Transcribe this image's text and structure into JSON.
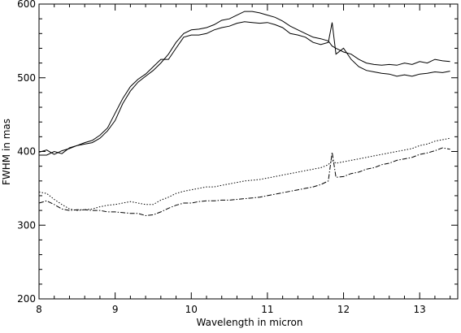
{
  "chart_data": {
    "type": "line",
    "title": "",
    "xlabel": "Wavelength in micron",
    "ylabel": "FWHM in mas",
    "xlim": [
      8,
      13.5
    ],
    "ylim": [
      200,
      600
    ],
    "xticks": [
      8,
      9,
      10,
      11,
      12,
      13
    ],
    "yticks": [
      200,
      300,
      400,
      500,
      600
    ],
    "grid": false,
    "legend": "none",
    "series": [
      {
        "style": "solid",
        "points": [
          [
            8.0,
            399
          ],
          [
            8.1,
            402
          ],
          [
            8.2,
            396
          ],
          [
            8.3,
            401
          ],
          [
            8.4,
            404
          ],
          [
            8.5,
            408
          ],
          [
            8.6,
            410
          ],
          [
            8.7,
            412
          ],
          [
            8.8,
            418
          ],
          [
            8.9,
            428
          ],
          [
            9.0,
            442
          ],
          [
            9.1,
            465
          ],
          [
            9.2,
            482
          ],
          [
            9.3,
            494
          ],
          [
            9.4,
            502
          ],
          [
            9.5,
            510
          ],
          [
            9.6,
            520
          ],
          [
            9.7,
            532
          ],
          [
            9.8,
            548
          ],
          [
            9.9,
            560
          ],
          [
            10.0,
            565
          ],
          [
            10.1,
            566
          ],
          [
            10.2,
            568
          ],
          [
            10.3,
            572
          ],
          [
            10.4,
            578
          ],
          [
            10.5,
            580
          ],
          [
            10.6,
            585
          ],
          [
            10.7,
            590
          ],
          [
            10.8,
            590
          ],
          [
            10.9,
            588
          ],
          [
            11.0,
            585
          ],
          [
            11.1,
            582
          ],
          [
            11.2,
            577
          ],
          [
            11.3,
            570
          ],
          [
            11.4,
            565
          ],
          [
            11.5,
            560
          ],
          [
            11.6,
            555
          ],
          [
            11.7,
            553
          ],
          [
            11.8,
            550
          ],
          [
            11.85,
            543
          ],
          [
            11.9,
            540
          ],
          [
            12.0,
            535
          ],
          [
            12.1,
            532
          ],
          [
            12.2,
            525
          ],
          [
            12.3,
            520
          ],
          [
            12.4,
            518
          ],
          [
            12.5,
            517
          ],
          [
            12.6,
            518
          ],
          [
            12.7,
            517
          ],
          [
            12.8,
            520
          ],
          [
            12.9,
            518
          ],
          [
            13.0,
            522
          ],
          [
            13.1,
            520
          ],
          [
            13.2,
            525
          ],
          [
            13.3,
            523
          ],
          [
            13.4,
            522
          ]
        ]
      },
      {
        "style": "solid",
        "points": [
          [
            8.0,
            395
          ],
          [
            8.1,
            395
          ],
          [
            8.2,
            400
          ],
          [
            8.3,
            397
          ],
          [
            8.4,
            405
          ],
          [
            8.5,
            408
          ],
          [
            8.6,
            412
          ],
          [
            8.7,
            415
          ],
          [
            8.8,
            422
          ],
          [
            8.9,
            432
          ],
          [
            9.0,
            452
          ],
          [
            9.1,
            472
          ],
          [
            9.2,
            488
          ],
          [
            9.3,
            498
          ],
          [
            9.4,
            505
          ],
          [
            9.5,
            515
          ],
          [
            9.6,
            525
          ],
          [
            9.7,
            525
          ],
          [
            9.8,
            540
          ],
          [
            9.9,
            555
          ],
          [
            10.0,
            558
          ],
          [
            10.1,
            558
          ],
          [
            10.2,
            560
          ],
          [
            10.3,
            565
          ],
          [
            10.4,
            568
          ],
          [
            10.5,
            570
          ],
          [
            10.6,
            574
          ],
          [
            10.7,
            576
          ],
          [
            10.8,
            575
          ],
          [
            10.9,
            574
          ],
          [
            11.0,
            575
          ],
          [
            11.1,
            572
          ],
          [
            11.2,
            568
          ],
          [
            11.3,
            560
          ],
          [
            11.4,
            558
          ],
          [
            11.5,
            555
          ],
          [
            11.6,
            548
          ],
          [
            11.7,
            545
          ],
          [
            11.8,
            548
          ],
          [
            11.85,
            575
          ],
          [
            11.9,
            532
          ],
          [
            12.0,
            540
          ],
          [
            12.1,
            525
          ],
          [
            12.2,
            515
          ],
          [
            12.3,
            510
          ],
          [
            12.4,
            508
          ],
          [
            12.5,
            506
          ],
          [
            12.6,
            505
          ],
          [
            12.7,
            502
          ],
          [
            12.8,
            504
          ],
          [
            12.9,
            502
          ],
          [
            13.0,
            505
          ],
          [
            13.1,
            506
          ],
          [
            13.2,
            508
          ],
          [
            13.3,
            507
          ],
          [
            13.4,
            509
          ]
        ]
      },
      {
        "style": "dotted",
        "points": [
          [
            8.0,
            345
          ],
          [
            8.1,
            343
          ],
          [
            8.2,
            335
          ],
          [
            8.3,
            328
          ],
          [
            8.4,
            322
          ],
          [
            8.5,
            320
          ],
          [
            8.6,
            321
          ],
          [
            8.7,
            322
          ],
          [
            8.8,
            325
          ],
          [
            8.9,
            327
          ],
          [
            9.0,
            328
          ],
          [
            9.1,
            330
          ],
          [
            9.2,
            332
          ],
          [
            9.3,
            330
          ],
          [
            9.4,
            328
          ],
          [
            9.5,
            328
          ],
          [
            9.6,
            334
          ],
          [
            9.7,
            338
          ],
          [
            9.8,
            343
          ],
          [
            9.9,
            346
          ],
          [
            10.0,
            348
          ],
          [
            10.1,
            350
          ],
          [
            10.2,
            352
          ],
          [
            10.3,
            352
          ],
          [
            10.4,
            354
          ],
          [
            10.5,
            356
          ],
          [
            10.6,
            358
          ],
          [
            10.7,
            360
          ],
          [
            10.8,
            361
          ],
          [
            10.9,
            362
          ],
          [
            11.0,
            364
          ],
          [
            11.1,
            366
          ],
          [
            11.2,
            368
          ],
          [
            11.3,
            370
          ],
          [
            11.4,
            372
          ],
          [
            11.5,
            374
          ],
          [
            11.6,
            376
          ],
          [
            11.7,
            378
          ],
          [
            11.8,
            382
          ],
          [
            11.85,
            388
          ],
          [
            11.9,
            384
          ],
          [
            12.0,
            386
          ],
          [
            12.1,
            388
          ],
          [
            12.2,
            390
          ],
          [
            12.3,
            392
          ],
          [
            12.4,
            394
          ],
          [
            12.5,
            396
          ],
          [
            12.6,
            398
          ],
          [
            12.7,
            400
          ],
          [
            12.8,
            402
          ],
          [
            12.9,
            404
          ],
          [
            13.0,
            408
          ],
          [
            13.1,
            410
          ],
          [
            13.2,
            414
          ],
          [
            13.3,
            416
          ],
          [
            13.4,
            418
          ]
        ]
      },
      {
        "style": "dash-dot",
        "points": [
          [
            8.0,
            330
          ],
          [
            8.1,
            333
          ],
          [
            8.2,
            328
          ],
          [
            8.3,
            322
          ],
          [
            8.4,
            320
          ],
          [
            8.5,
            321
          ],
          [
            8.6,
            321
          ],
          [
            8.7,
            320
          ],
          [
            8.8,
            320
          ],
          [
            8.9,
            318
          ],
          [
            9.0,
            318
          ],
          [
            9.1,
            317
          ],
          [
            9.2,
            316
          ],
          [
            9.3,
            316
          ],
          [
            9.4,
            313
          ],
          [
            9.5,
            314
          ],
          [
            9.6,
            318
          ],
          [
            9.7,
            323
          ],
          [
            9.8,
            327
          ],
          [
            9.9,
            330
          ],
          [
            10.0,
            330
          ],
          [
            10.1,
            332
          ],
          [
            10.2,
            333
          ],
          [
            10.3,
            333
          ],
          [
            10.4,
            334
          ],
          [
            10.5,
            334
          ],
          [
            10.6,
            335
          ],
          [
            10.7,
            336
          ],
          [
            10.8,
            337
          ],
          [
            10.9,
            338
          ],
          [
            11.0,
            340
          ],
          [
            11.1,
            342
          ],
          [
            11.2,
            344
          ],
          [
            11.3,
            346
          ],
          [
            11.4,
            348
          ],
          [
            11.5,
            350
          ],
          [
            11.6,
            352
          ],
          [
            11.7,
            355
          ],
          [
            11.8,
            360
          ],
          [
            11.85,
            399
          ],
          [
            11.9,
            365
          ],
          [
            12.0,
            366
          ],
          [
            12.1,
            370
          ],
          [
            12.2,
            372
          ],
          [
            12.3,
            376
          ],
          [
            12.4,
            378
          ],
          [
            12.5,
            382
          ],
          [
            12.6,
            384
          ],
          [
            12.7,
            388
          ],
          [
            12.8,
            390
          ],
          [
            12.9,
            392
          ],
          [
            13.0,
            396
          ],
          [
            13.1,
            398
          ],
          [
            13.2,
            401
          ],
          [
            13.3,
            405
          ],
          [
            13.4,
            403
          ]
        ]
      }
    ]
  }
}
